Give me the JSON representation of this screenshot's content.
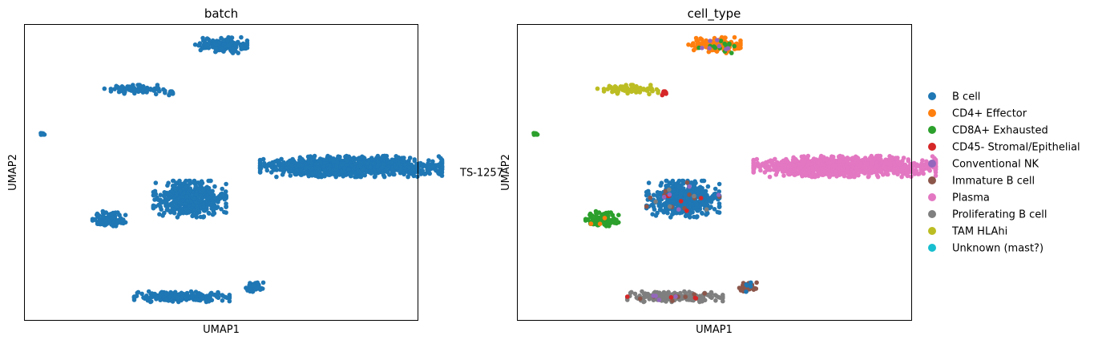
{
  "chart_data": [
    {
      "type": "scatter",
      "title": "batch",
      "xlabel": "UMAP1",
      "ylabel": "UMAP2",
      "grid": false,
      "ticks": false,
      "legend_position": "right",
      "legend": [
        {
          "label": "TS-1257",
          "color": "#1f77b4"
        }
      ],
      "clusters": [
        {
          "name": "top cluster",
          "cx": 5.0,
          "cy": 9.3,
          "sx": 0.3,
          "sy": 0.12,
          "n": 140,
          "composition": [
            [
              "TS-1257",
              1.0
            ]
          ]
        },
        {
          "name": "upper-left cluster",
          "cx": 2.8,
          "cy": 7.8,
          "sx": 0.35,
          "sy": 0.07,
          "n": 90,
          "composition": [
            [
              "TS-1257",
              1.0
            ]
          ]
        },
        {
          "name": "upper-left satellite",
          "cx": 3.75,
          "cy": 7.7,
          "sx": 0.05,
          "sy": 0.04,
          "n": 8,
          "composition": [
            [
              "TS-1257",
              1.0
            ]
          ]
        },
        {
          "name": "far-left dot",
          "cx": 0.45,
          "cy": 6.3,
          "sx": 0.05,
          "sy": 0.04,
          "n": 8,
          "composition": [
            [
              "TS-1257",
              1.0
            ]
          ]
        },
        {
          "name": "right band",
          "cx": 8.3,
          "cy": 5.2,
          "sx": 1.05,
          "sy": 0.16,
          "n": 1000,
          "composition": [
            [
              "TS-1257",
              1.0
            ]
          ]
        },
        {
          "name": "center cluster",
          "cx": 4.2,
          "cy": 4.1,
          "sx": 0.42,
          "sy": 0.28,
          "n": 500,
          "composition": [
            [
              "TS-1257",
              1.0
            ]
          ]
        },
        {
          "name": "left cluster",
          "cx": 2.15,
          "cy": 3.4,
          "sx": 0.19,
          "sy": 0.13,
          "n": 110,
          "composition": [
            [
              "TS-1257",
              1.0
            ]
          ]
        },
        {
          "name": "bottom band",
          "cx": 4.0,
          "cy": 0.8,
          "sx": 0.55,
          "sy": 0.08,
          "n": 200,
          "composition": [
            [
              "TS-1257",
              1.0
            ]
          ]
        },
        {
          "name": "bottom-right small",
          "cx": 5.85,
          "cy": 1.1,
          "sx": 0.1,
          "sy": 0.08,
          "n": 45,
          "composition": [
            [
              "TS-1257",
              1.0
            ]
          ]
        }
      ],
      "xlim": [
        0,
        10
      ],
      "ylim": [
        0,
        10
      ]
    },
    {
      "type": "scatter",
      "title": "cell_type",
      "xlabel": "UMAP1",
      "ylabel": "UMAP2",
      "grid": false,
      "ticks": false,
      "legend_position": "right",
      "legend": [
        {
          "label": "B cell",
          "color": "#1f77b4"
        },
        {
          "label": "CD4+ Effector",
          "color": "#ff7f0e"
        },
        {
          "label": "CD8A+ Exhausted",
          "color": "#2ca02c"
        },
        {
          "label": "CD45- Stromal/Epithelial",
          "color": "#d62728"
        },
        {
          "label": "Conventional NK",
          "color": "#9467bd"
        },
        {
          "label": "Immature B cell",
          "color": "#8c564b"
        },
        {
          "label": "Plasma",
          "color": "#e377c2"
        },
        {
          "label": "Proliferating B cell",
          "color": "#7f7f7f"
        },
        {
          "label": "TAM HLAhi",
          "color": "#bcbd22"
        },
        {
          "label": "Unknown (mast?)",
          "color": "#17becf"
        }
      ],
      "clusters": [
        {
          "name": "top cluster",
          "cx": 5.0,
          "cy": 9.3,
          "sx": 0.3,
          "sy": 0.12,
          "n": 140,
          "composition": [
            [
              "CD4+ Effector",
              0.85
            ],
            [
              "CD8A+ Exhausted",
              0.1
            ],
            [
              "Conventional NK",
              0.05
            ]
          ]
        },
        {
          "name": "upper-left cluster",
          "cx": 2.8,
          "cy": 7.8,
          "sx": 0.35,
          "sy": 0.07,
          "n": 90,
          "composition": [
            [
              "TAM HLAhi",
              1.0
            ]
          ]
        },
        {
          "name": "upper-left satellite",
          "cx": 3.75,
          "cy": 7.7,
          "sx": 0.05,
          "sy": 0.04,
          "n": 8,
          "composition": [
            [
              "CD45- Stromal/Epithelial",
              1.0
            ]
          ]
        },
        {
          "name": "far-left dot",
          "cx": 0.45,
          "cy": 6.3,
          "sx": 0.05,
          "sy": 0.04,
          "n": 8,
          "composition": [
            [
              "CD8A+ Exhausted",
              1.0
            ]
          ]
        },
        {
          "name": "right band",
          "cx": 8.3,
          "cy": 5.2,
          "sx": 1.05,
          "sy": 0.16,
          "n": 1000,
          "composition": [
            [
              "Plasma",
              1.0
            ]
          ]
        },
        {
          "name": "center cluster",
          "cx": 4.2,
          "cy": 4.1,
          "sx": 0.42,
          "sy": 0.28,
          "n": 500,
          "composition": [
            [
              "B cell",
              0.95
            ],
            [
              "Immature B cell",
              0.02
            ],
            [
              "Proliferating B cell",
              0.01
            ],
            [
              "CD45- Stromal/Epithelial",
              0.01
            ],
            [
              "Conventional NK",
              0.01
            ]
          ]
        },
        {
          "name": "left cluster",
          "cx": 2.15,
          "cy": 3.4,
          "sx": 0.19,
          "sy": 0.13,
          "n": 110,
          "composition": [
            [
              "CD8A+ Exhausted",
              0.97
            ],
            [
              "CD4+ Effector",
              0.03
            ]
          ]
        },
        {
          "name": "bottom band",
          "cx": 4.0,
          "cy": 0.8,
          "sx": 0.55,
          "sy": 0.08,
          "n": 200,
          "composition": [
            [
              "Proliferating B cell",
              0.92
            ],
            [
              "Immature B cell",
              0.04
            ],
            [
              "Conventional NK",
              0.02
            ],
            [
              "CD45- Stromal/Epithelial",
              0.02
            ]
          ]
        },
        {
          "name": "bottom-right small",
          "cx": 5.85,
          "cy": 1.1,
          "sx": 0.1,
          "sy": 0.08,
          "n": 45,
          "composition": [
            [
              "Immature B cell",
              0.9
            ],
            [
              "B cell",
              0.1
            ]
          ]
        }
      ],
      "xlim": [
        0,
        10
      ],
      "ylim": [
        0,
        10
      ]
    }
  ]
}
